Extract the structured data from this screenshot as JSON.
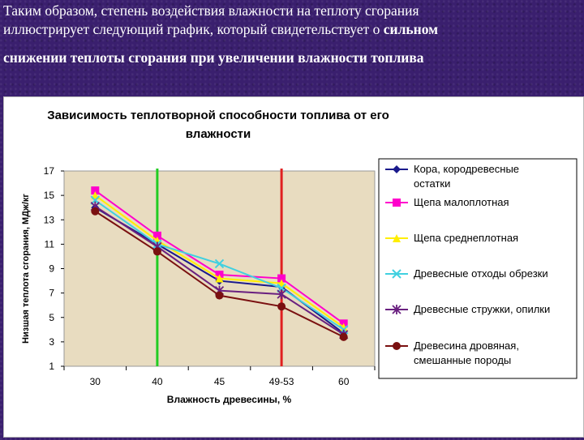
{
  "header": {
    "line1": "Таким образом, степень воздействия влажности на теплоту сгорания",
    "line2_plain": "иллюстрирует следующий график, который свидетельствует о ",
    "line2_bold": "сильном",
    "line3": "снижении теплоты сгорания при увеличении влажности топлива"
  },
  "chart_data": {
    "type": "line",
    "title": "Зависимость теплотворной способности топлива от его влажности",
    "title_lines": [
      "Зависимость теплотворной способности топлива от его",
      "влажности"
    ],
    "xlabel": "Влажность древесины, %",
    "ylabel": "Низшая теплота сгорания, МДж/кг",
    "categories": [
      "30",
      "40",
      "45",
      "49-53",
      "60"
    ],
    "ylim": [
      1,
      17
    ],
    "yticks": [
      1,
      3,
      5,
      7,
      9,
      11,
      13,
      15,
      17
    ],
    "grid": false,
    "legend_position": "right",
    "vertical_markers": [
      {
        "category_index": 1,
        "color": "#22cc22"
      },
      {
        "category_index": 3,
        "color": "#e02020"
      }
    ],
    "series": [
      {
        "name": "Кора, кородревесные остатки",
        "legend_lines": [
          "Кора, кородревесные",
          "остатки"
        ],
        "color": "#1a1a8c",
        "marker": "diamond",
        "values": [
          14.0,
          11.0,
          8.0,
          7.5,
          3.7
        ]
      },
      {
        "name": "Щепа малоплотная",
        "legend_lines": [
          "Щепа малоплотная"
        ],
        "color": "#ff00cc",
        "marker": "square",
        "values": [
          15.4,
          11.7,
          8.5,
          8.2,
          4.5
        ]
      },
      {
        "name": "Щепа среднеплотная",
        "legend_lines": [
          "Щепа среднеплотная"
        ],
        "color": "#ffee00",
        "marker": "triangle",
        "values": [
          15.0,
          11.3,
          8.2,
          7.8,
          4.2
        ]
      },
      {
        "name": "Древесные отходы обрезки",
        "legend_lines": [
          "Древесные отходы обрезки"
        ],
        "color": "#40d0e0",
        "marker": "x",
        "values": [
          14.6,
          11.0,
          9.4,
          7.4,
          4.0
        ]
      },
      {
        "name": "Древесные стружки, опилки",
        "legend_lines": [
          "Древесные стружки, опилки"
        ],
        "color": "#6a2080",
        "marker": "star",
        "values": [
          14.1,
          10.8,
          7.2,
          6.9,
          3.6
        ]
      },
      {
        "name": "Древесина дровяная, смешанные породы",
        "legend_lines": [
          "Древесина дровяная,",
          "смешанные породы"
        ],
        "color": "#7a1010",
        "marker": "circle",
        "values": [
          13.7,
          10.4,
          6.8,
          5.9,
          3.4
        ]
      }
    ]
  }
}
